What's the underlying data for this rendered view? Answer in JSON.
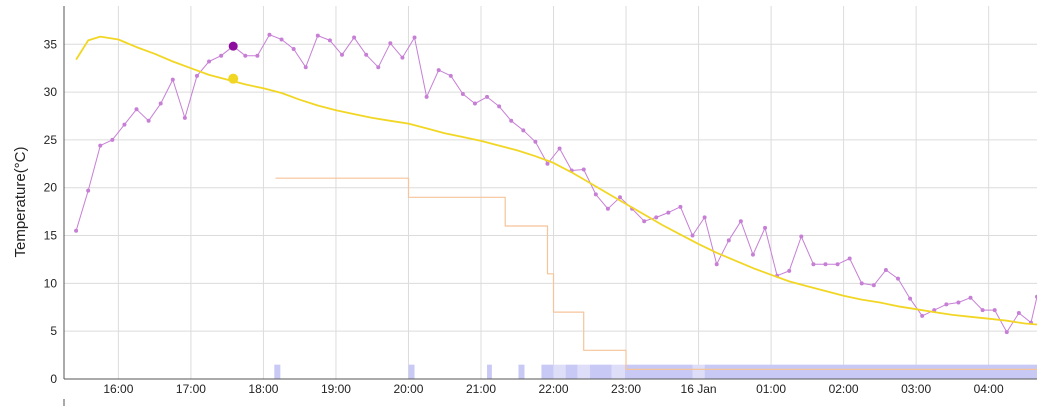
{
  "chart_data": {
    "type": "line",
    "ylabel": "Temperature(°C)",
    "ylim": [
      0,
      39
    ],
    "yticks": [
      0,
      5,
      10,
      15,
      20,
      25,
      30,
      35
    ],
    "xlim": [
      "15:15",
      "04:40"
    ],
    "xticks": [
      {
        "t": "16:00",
        "label": "16:00"
      },
      {
        "t": "17:00",
        "label": "17:00"
      },
      {
        "t": "18:00",
        "label": "18:00"
      },
      {
        "t": "19:00",
        "label": "19:00"
      },
      {
        "t": "20:00",
        "label": "20:00"
      },
      {
        "t": "21:00",
        "label": "21:00"
      },
      {
        "t": "22:00",
        "label": "22:00"
      },
      {
        "t": "23:00",
        "label": "23:00"
      },
      {
        "t": "00:00",
        "label": "16 Jan"
      },
      {
        "t": "01:00",
        "label": "01:00"
      },
      {
        "t": "02:00",
        "label": "02:00"
      },
      {
        "t": "03:00",
        "label": "03:00"
      },
      {
        "t": "04:00",
        "label": "04:00"
      }
    ],
    "grid": true,
    "colors": {
      "measured": "#c77fd6",
      "measured_highlight": "#8e0d9e",
      "smooth": "#f2d624",
      "smooth_highlight": "#f2d624",
      "target": "#f5c49a",
      "activity": "#c9c9f5",
      "activity_light": "#dedef8"
    },
    "series": [
      {
        "key": "measured",
        "values": [
          [
            "15:25",
            15.5
          ],
          [
            "15:35",
            19.7
          ],
          [
            "15:45",
            24.4
          ],
          [
            "15:55",
            25.0
          ],
          [
            "16:05",
            26.6
          ],
          [
            "16:15",
            28.2
          ],
          [
            "16:25",
            27.0
          ],
          [
            "16:35",
            28.8
          ],
          [
            "16:45",
            31.3
          ],
          [
            "16:55",
            27.3
          ],
          [
            "17:05",
            31.7
          ],
          [
            "17:15",
            33.2
          ],
          [
            "17:25",
            33.8
          ],
          [
            "17:35",
            34.8
          ],
          [
            "17:45",
            33.8
          ],
          [
            "17:55",
            33.8
          ],
          [
            "18:05",
            36.0
          ],
          [
            "18:15",
            35.5
          ],
          [
            "18:25",
            34.5
          ],
          [
            "18:35",
            32.6
          ],
          [
            "18:45",
            35.9
          ],
          [
            "18:55",
            35.4
          ],
          [
            "19:05",
            33.9
          ],
          [
            "19:15",
            35.7
          ],
          [
            "19:25",
            33.9
          ],
          [
            "19:35",
            32.6
          ],
          [
            "19:45",
            35.1
          ],
          [
            "19:55",
            33.6
          ],
          [
            "20:05",
            35.7
          ],
          [
            "20:15",
            29.5
          ],
          [
            "20:25",
            32.3
          ],
          [
            "20:35",
            31.7
          ],
          [
            "20:45",
            29.8
          ],
          [
            "20:55",
            28.8
          ],
          [
            "21:05",
            29.5
          ],
          [
            "21:15",
            28.5
          ],
          [
            "21:25",
            27.0
          ],
          [
            "21:35",
            26.0
          ],
          [
            "21:45",
            24.8
          ],
          [
            "21:55",
            22.5
          ],
          [
            "22:05",
            24.1
          ],
          [
            "22:15",
            21.8
          ],
          [
            "22:25",
            21.9
          ],
          [
            "22:35",
            19.3
          ],
          [
            "22:45",
            17.8
          ],
          [
            "22:55",
            19.0
          ],
          [
            "23:05",
            17.8
          ],
          [
            "23:15",
            16.5
          ],
          [
            "23:25",
            16.9
          ],
          [
            "23:35",
            17.4
          ],
          [
            "23:45",
            18.0
          ],
          [
            "23:55",
            15.0
          ],
          [
            "00:05",
            16.9
          ],
          [
            "00:15",
            12.0
          ],
          [
            "00:25",
            14.5
          ],
          [
            "00:35",
            16.5
          ],
          [
            "00:45",
            13.0
          ],
          [
            "00:55",
            15.8
          ],
          [
            "01:05",
            10.8
          ],
          [
            "01:15",
            11.3
          ],
          [
            "01:25",
            14.9
          ],
          [
            "01:35",
            12.0
          ],
          [
            "01:45",
            12.0
          ],
          [
            "01:55",
            12.0
          ],
          [
            "02:05",
            12.6
          ],
          [
            "02:15",
            10.0
          ],
          [
            "02:25",
            9.8
          ],
          [
            "02:35",
            11.4
          ],
          [
            "02:45",
            10.5
          ],
          [
            "02:55",
            8.4
          ],
          [
            "03:05",
            6.6
          ],
          [
            "03:15",
            7.2
          ],
          [
            "03:25",
            7.8
          ],
          [
            "03:35",
            8.0
          ],
          [
            "03:45",
            8.5
          ],
          [
            "03:55",
            7.2
          ],
          [
            "04:05",
            7.2
          ],
          [
            "04:15",
            4.9
          ],
          [
            "04:25",
            6.9
          ],
          [
            "04:35",
            5.9
          ],
          [
            "04:40",
            8.6
          ]
        ],
        "highlight": [
          "17:35",
          34.8
        ]
      },
      {
        "key": "smooth",
        "values": [
          [
            "15:25",
            33.4
          ],
          [
            "15:35",
            35.4
          ],
          [
            "15:45",
            35.8
          ],
          [
            "16:00",
            35.5
          ],
          [
            "16:15",
            34.7
          ],
          [
            "16:30",
            34.0
          ],
          [
            "16:45",
            33.2
          ],
          [
            "17:00",
            32.5
          ],
          [
            "17:15",
            31.8
          ],
          [
            "17:30",
            31.3
          ],
          [
            "17:45",
            30.8
          ],
          [
            "18:00",
            30.4
          ],
          [
            "18:15",
            29.9
          ],
          [
            "18:30",
            29.2
          ],
          [
            "18:45",
            28.6
          ],
          [
            "19:00",
            28.1
          ],
          [
            "19:15",
            27.7
          ],
          [
            "19:30",
            27.3
          ],
          [
            "19:45",
            27.0
          ],
          [
            "20:00",
            26.7
          ],
          [
            "20:15",
            26.2
          ],
          [
            "20:30",
            25.7
          ],
          [
            "20:45",
            25.3
          ],
          [
            "21:00",
            24.9
          ],
          [
            "21:15",
            24.4
          ],
          [
            "21:30",
            23.9
          ],
          [
            "21:45",
            23.3
          ],
          [
            "22:00",
            22.6
          ],
          [
            "22:15",
            21.6
          ],
          [
            "22:30",
            20.5
          ],
          [
            "22:45",
            19.4
          ],
          [
            "23:00",
            18.3
          ],
          [
            "23:15",
            17.2
          ],
          [
            "23:30",
            16.1
          ],
          [
            "23:45",
            15.1
          ],
          [
            "00:00",
            14.1
          ],
          [
            "00:15",
            13.2
          ],
          [
            "00:30",
            12.4
          ],
          [
            "00:45",
            11.6
          ],
          [
            "01:00",
            10.9
          ],
          [
            "01:15",
            10.2
          ],
          [
            "01:30",
            9.7
          ],
          [
            "01:45",
            9.2
          ],
          [
            "02:00",
            8.7
          ],
          [
            "02:15",
            8.3
          ],
          [
            "02:30",
            8.0
          ],
          [
            "02:45",
            7.6
          ],
          [
            "03:00",
            7.3
          ],
          [
            "03:15",
            7.0
          ],
          [
            "03:30",
            6.7
          ],
          [
            "03:45",
            6.5
          ],
          [
            "04:00",
            6.3
          ],
          [
            "04:15",
            6.1
          ],
          [
            "04:30",
            5.8
          ],
          [
            "04:40",
            5.7
          ]
        ],
        "highlight": [
          "17:35",
          31.4
        ]
      },
      {
        "key": "target",
        "step": true,
        "values": [
          [
            "18:10",
            21
          ],
          [
            "20:00",
            19
          ],
          [
            "21:20",
            16
          ],
          [
            "21:55",
            11
          ],
          [
            "22:00",
            7
          ],
          [
            "22:25",
            3
          ],
          [
            "23:00",
            1
          ],
          [
            "04:40",
            1
          ]
        ]
      }
    ],
    "activity_bands": [
      {
        "start": "18:09",
        "end": "18:14",
        "level": 1.5,
        "shade": "dark"
      },
      {
        "start": "20:00",
        "end": "20:05",
        "level": 1.5,
        "shade": "dark"
      },
      {
        "start": "21:05",
        "end": "21:09",
        "level": 1.5,
        "shade": "dark"
      },
      {
        "start": "21:31",
        "end": "21:36",
        "level": 1.5,
        "shade": "dark"
      },
      {
        "start": "21:50",
        "end": "22:00",
        "level": 1.5,
        "shade": "dark"
      },
      {
        "start": "22:00",
        "end": "22:10",
        "level": 1.5,
        "shade": "light"
      },
      {
        "start": "22:10",
        "end": "22:20",
        "level": 1.5,
        "shade": "dark"
      },
      {
        "start": "22:20",
        "end": "22:30",
        "level": 1.5,
        "shade": "light"
      },
      {
        "start": "22:30",
        "end": "22:48",
        "level": 1.5,
        "shade": "dark"
      },
      {
        "start": "22:48",
        "end": "22:59",
        "level": 1.5,
        "shade": "light"
      },
      {
        "start": "22:59",
        "end": "23:55",
        "level": 1.5,
        "shade": "dark"
      },
      {
        "start": "23:55",
        "end": "00:05",
        "level": 1.5,
        "shade": "light"
      },
      {
        "start": "00:05",
        "end": "04:40",
        "level": 1.5,
        "shade": "dark"
      }
    ]
  }
}
